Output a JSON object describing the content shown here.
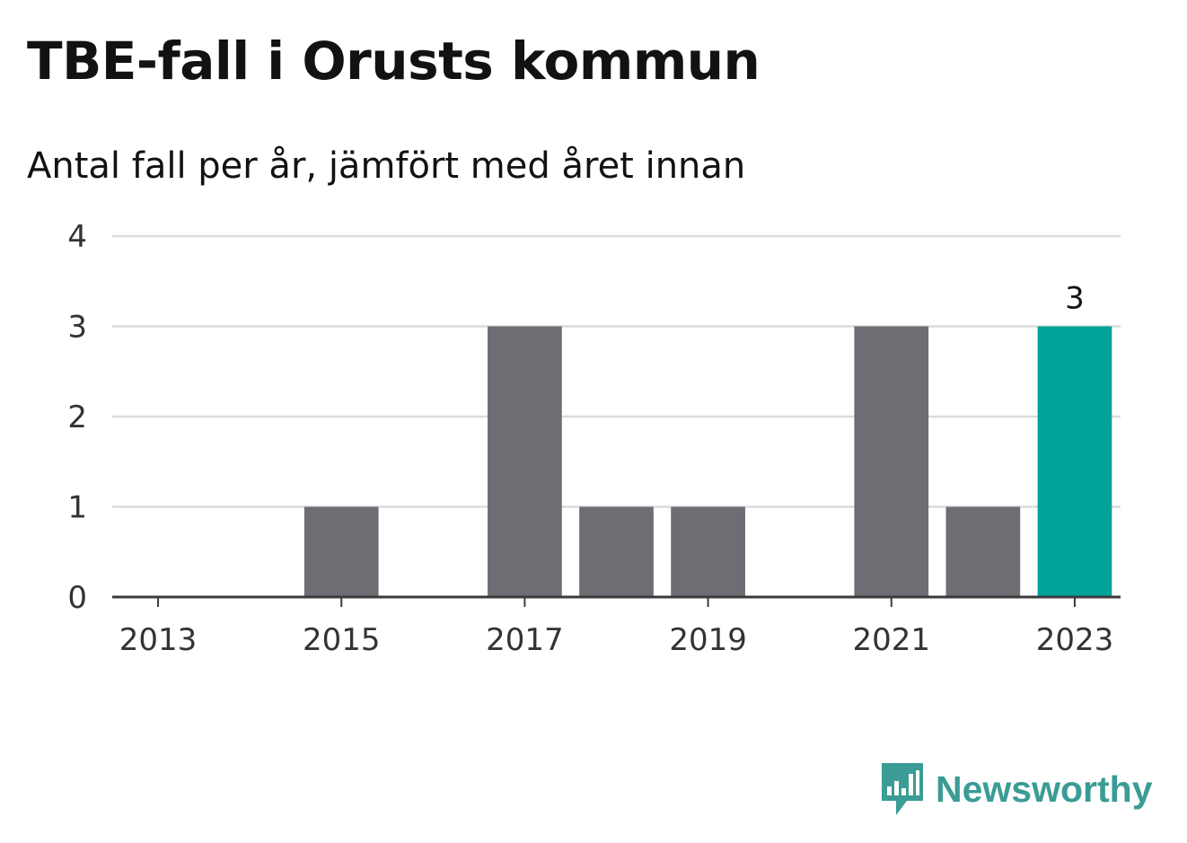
{
  "chart_data": {
    "type": "bar",
    "title": "TBE-fall i Orusts kommun",
    "subtitle": "Antal fall per år, jämfört med året innan",
    "categories": [
      "2013",
      "2014",
      "2015",
      "2016",
      "2017",
      "2018",
      "2019",
      "2020",
      "2021",
      "2022",
      "2023"
    ],
    "values": [
      0,
      0,
      1,
      0,
      3,
      1,
      1,
      0,
      3,
      1,
      3
    ],
    "x_tick_labels": [
      "2013",
      "2015",
      "2017",
      "2019",
      "2021",
      "2023"
    ],
    "y_ticks": [
      0,
      1,
      2,
      3,
      4
    ],
    "ylim": [
      0,
      4
    ],
    "grid": true,
    "highlight": {
      "category": "2023",
      "label": "3"
    },
    "colors": {
      "bar": "#6e6d74",
      "highlight": "#00a398",
      "grid": "#dcdcdc",
      "axis": "#3b3b3b"
    }
  },
  "brand": {
    "name": "Newsworthy",
    "color": "#3a9c94",
    "icon": "newsworthy-logo-icon"
  }
}
